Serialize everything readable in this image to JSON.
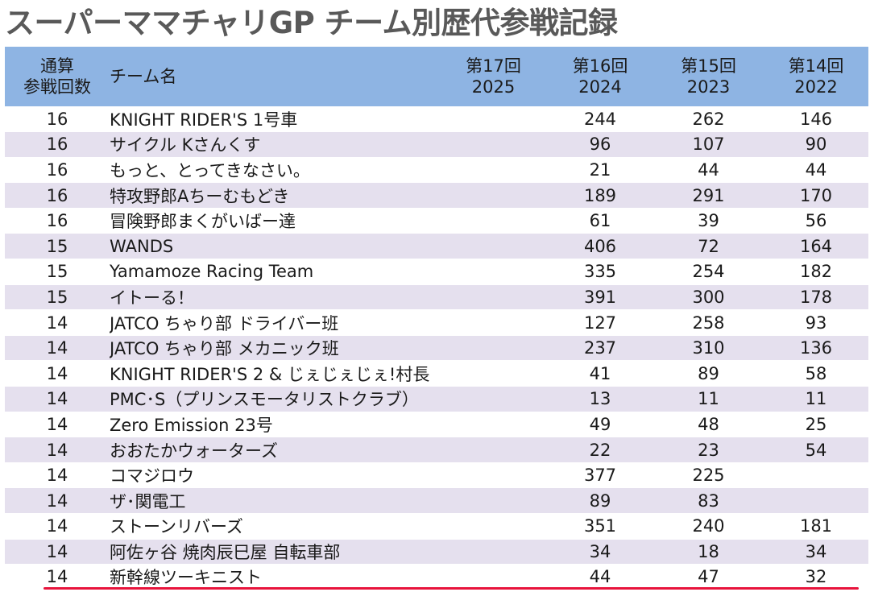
{
  "title": "スーパーママチャリGP チーム別歴代参戦記録",
  "header": {
    "total": [
      "通算",
      "参戦回数"
    ],
    "name": "チーム名",
    "years": [
      {
        "label": "第17回",
        "year": "2025"
      },
      {
        "label": "第16回",
        "year": "2024"
      },
      {
        "label": "第15回",
        "year": "2023"
      },
      {
        "label": "第14回",
        "year": "2022"
      }
    ]
  },
  "rows": [
    {
      "total": "16",
      "name": "KNIGHT RIDER'S 1号車",
      "y2025": "",
      "y2024": "244",
      "y2023": "262",
      "y2022": "146"
    },
    {
      "total": "16",
      "name": "サイクル Kさんくす",
      "y2025": "",
      "y2024": "96",
      "y2023": "107",
      "y2022": "90"
    },
    {
      "total": "16",
      "name": "もっと、とってきなさい。",
      "y2025": "",
      "y2024": "21",
      "y2023": "44",
      "y2022": "44"
    },
    {
      "total": "16",
      "name": "特攻野郎Aちーむもどき",
      "y2025": "",
      "y2024": "189",
      "y2023": "291",
      "y2022": "170"
    },
    {
      "total": "16",
      "name": "冒険野郎まくがいばー達",
      "y2025": "",
      "y2024": "61",
      "y2023": "39",
      "y2022": "56"
    },
    {
      "total": "15",
      "name": "WANDS",
      "y2025": "",
      "y2024": "406",
      "y2023": "72",
      "y2022": "164"
    },
    {
      "total": "15",
      "name": "Yamamoze Racing Team",
      "y2025": "",
      "y2024": "335",
      "y2023": "254",
      "y2022": "182"
    },
    {
      "total": "15",
      "name": "イトーる！",
      "y2025": "",
      "y2024": "391",
      "y2023": "300",
      "y2022": "178"
    },
    {
      "total": "14",
      "name": "JATCO ちゃり部 ドライバー班",
      "y2025": "",
      "y2024": "127",
      "y2023": "258",
      "y2022": "93"
    },
    {
      "total": "14",
      "name": "JATCO ちゃり部 メカニック班",
      "y2025": "",
      "y2024": "237",
      "y2023": "310",
      "y2022": "136"
    },
    {
      "total": "14",
      "name": "KNIGHT RIDER'S 2 & じぇじぇじぇ!村長",
      "y2025": "",
      "y2024": "41",
      "y2023": "89",
      "y2022": "58"
    },
    {
      "total": "14",
      "name": "PMC･S（プリンスモータリストクラブ）",
      "y2025": "",
      "y2024": "13",
      "y2023": "11",
      "y2022": "11"
    },
    {
      "total": "14",
      "name": "Zero Emission 23号",
      "y2025": "",
      "y2024": "49",
      "y2023": "48",
      "y2022": "25"
    },
    {
      "total": "14",
      "name": "おおたかウォーターズ",
      "y2025": "",
      "y2024": "22",
      "y2023": "23",
      "y2022": "54"
    },
    {
      "total": "14",
      "name": "コマジロウ",
      "y2025": "",
      "y2024": "377",
      "y2023": "225",
      "y2022": ""
    },
    {
      "total": "14",
      "name": "ザ･関電工",
      "y2025": "",
      "y2024": "89",
      "y2023": "83",
      "y2022": ""
    },
    {
      "total": "14",
      "name": "ストーンリバーズ",
      "y2025": "",
      "y2024": "351",
      "y2023": "240",
      "y2022": "181"
    },
    {
      "total": "14",
      "name": "阿佐ヶ谷 焼肉辰巳屋 自転車部",
      "y2025": "",
      "y2024": "34",
      "y2023": "18",
      "y2022": "34"
    },
    {
      "total": "14",
      "name": "新幹線ツーキニスト",
      "y2025": "",
      "y2024": "44",
      "y2023": "47",
      "y2022": "32"
    }
  ],
  "colors": {
    "header_bg": "#8eb4e3",
    "stripe_bg": "#e5e0ee",
    "title_color": "#595959",
    "highlight_line": "#e8143c"
  }
}
